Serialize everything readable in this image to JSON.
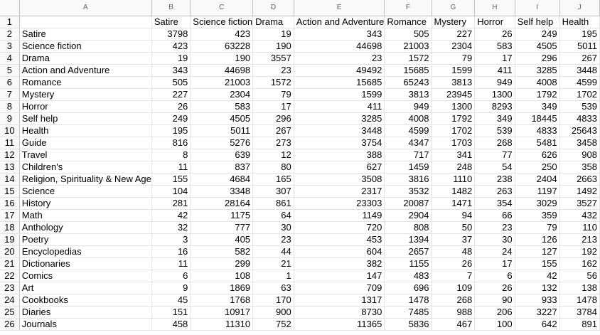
{
  "columns": [
    "A",
    "B",
    "C",
    "D",
    "E",
    "F",
    "G",
    "H",
    "I",
    "J"
  ],
  "header_row": [
    "",
    "Satire",
    "Science fiction",
    "Drama",
    "Action and Adventure",
    "Romance",
    "Mystery",
    "Horror",
    "Self help",
    "Health"
  ],
  "rows": [
    {
      "label": "Satire",
      "values": [
        "3798",
        "423",
        "19",
        "343",
        "505",
        "227",
        "26",
        "249",
        "195"
      ]
    },
    {
      "label": "Science fiction",
      "values": [
        "423",
        "63228",
        "190",
        "44698",
        "21003",
        "2304",
        "583",
        "4505",
        "5011"
      ]
    },
    {
      "label": "Drama",
      "values": [
        "19",
        "190",
        "3557",
        "23",
        "1572",
        "79",
        "17",
        "296",
        "267"
      ]
    },
    {
      "label": "Action and Adventure",
      "values": [
        "343",
        "44698",
        "23",
        "49492",
        "15685",
        "1599",
        "411",
        "3285",
        "3448"
      ]
    },
    {
      "label": "Romance",
      "values": [
        "505",
        "21003",
        "1572",
        "15685",
        "65243",
        "3813",
        "949",
        "4008",
        "4599"
      ]
    },
    {
      "label": "Mystery",
      "values": [
        "227",
        "2304",
        "79",
        "1599",
        "3813",
        "23945",
        "1300",
        "1792",
        "1702"
      ]
    },
    {
      "label": "Horror",
      "values": [
        "26",
        "583",
        "17",
        "411",
        "949",
        "1300",
        "8293",
        "349",
        "539"
      ]
    },
    {
      "label": "Self help",
      "values": [
        "249",
        "4505",
        "296",
        "3285",
        "4008",
        "1792",
        "349",
        "18445",
        "4833"
      ]
    },
    {
      "label": "Health",
      "values": [
        "195",
        "5011",
        "267",
        "3448",
        "4599",
        "1702",
        "539",
        "4833",
        "25643"
      ]
    },
    {
      "label": "Guide",
      "values": [
        "816",
        "5276",
        "273",
        "3754",
        "4347",
        "1703",
        "268",
        "5481",
        "3458"
      ]
    },
    {
      "label": "Travel",
      "values": [
        "8",
        "639",
        "12",
        "388",
        "717",
        "341",
        "77",
        "626",
        "908"
      ]
    },
    {
      "label": "Children's",
      "values": [
        "11",
        "837",
        "80",
        "627",
        "1459",
        "248",
        "54",
        "250",
        "358"
      ]
    },
    {
      "label": "Religion, Spirituality & New Age",
      "values": [
        "155",
        "4684",
        "165",
        "3508",
        "3816",
        "1110",
        "238",
        "2404",
        "2663"
      ]
    },
    {
      "label": "Science",
      "values": [
        "104",
        "3348",
        "307",
        "2317",
        "3532",
        "1482",
        "263",
        "1197",
        "1492"
      ]
    },
    {
      "label": "History",
      "values": [
        "281",
        "28164",
        "861",
        "23303",
        "20087",
        "1471",
        "354",
        "3029",
        "3527"
      ]
    },
    {
      "label": "Math",
      "values": [
        "42",
        "1175",
        "64",
        "1149",
        "2904",
        "94",
        "66",
        "359",
        "432"
      ]
    },
    {
      "label": "Anthology",
      "values": [
        "32",
        "777",
        "30",
        "720",
        "808",
        "50",
        "23",
        "79",
        "110"
      ]
    },
    {
      "label": "Poetry",
      "values": [
        "3",
        "405",
        "23",
        "453",
        "1394",
        "37",
        "30",
        "126",
        "213"
      ]
    },
    {
      "label": "Encyclopedias",
      "values": [
        "16",
        "582",
        "44",
        "604",
        "2657",
        "48",
        "24",
        "127",
        "192"
      ]
    },
    {
      "label": "Dictionaries",
      "values": [
        "11",
        "299",
        "21",
        "382",
        "1155",
        "26",
        "17",
        "155",
        "162"
      ]
    },
    {
      "label": "Comics",
      "values": [
        "6",
        "108",
        "1",
        "147",
        "483",
        "7",
        "6",
        "42",
        "56"
      ]
    },
    {
      "label": "Art",
      "values": [
        "9",
        "1869",
        "63",
        "709",
        "696",
        "109",
        "26",
        "132",
        "138"
      ]
    },
    {
      "label": "Cookbooks",
      "values": [
        "45",
        "1768",
        "170",
        "1317",
        "1478",
        "268",
        "90",
        "933",
        "1478"
      ]
    },
    {
      "label": "Diaries",
      "values": [
        "151",
        "10917",
        "900",
        "8730",
        "7485",
        "988",
        "206",
        "3227",
        "3784"
      ]
    },
    {
      "label": "Journals",
      "values": [
        "458",
        "11310",
        "752",
        "11365",
        "5836",
        "467",
        "100",
        "642",
        "891"
      ]
    }
  ]
}
